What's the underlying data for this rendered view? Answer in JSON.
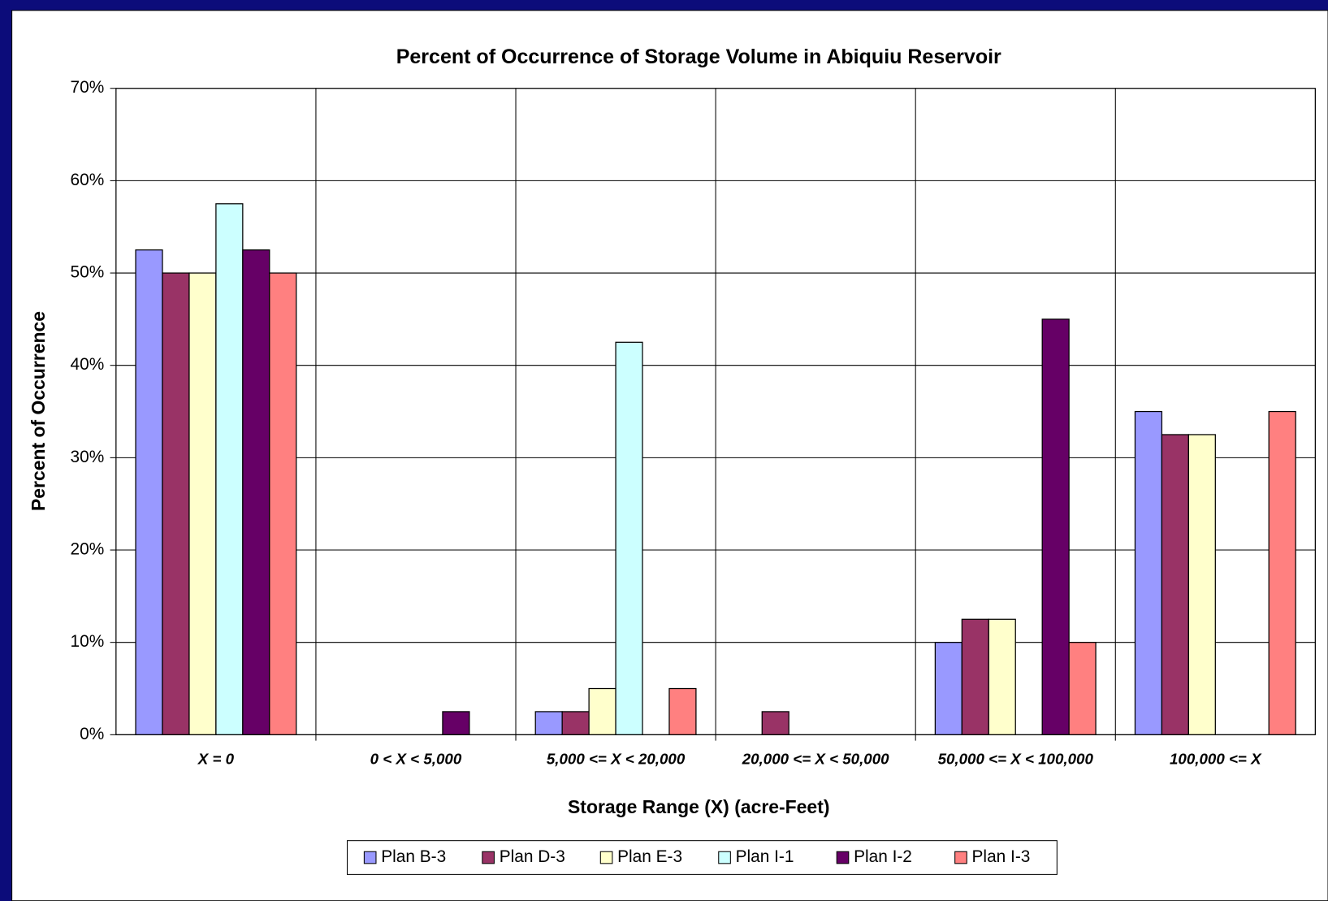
{
  "chart_data": {
    "type": "bar",
    "title": "Percent of Occurrence of Storage Volume in Abiquiu Reservoir",
    "x_label": "Storage Range (X) (acre-Feet)",
    "y_label": "Percent of Occurrence",
    "categories": [
      "X = 0",
      "0 < X < 5,000",
      "5,000 <= X < 20,000",
      "20,000 <= X < 50,000",
      "50,000 <= X < 100,000",
      "100,000 <= X"
    ],
    "series": [
      {
        "name": "Plan B-3",
        "color": "#9999ff",
        "values": [
          52.5,
          0,
          2.5,
          0,
          10,
          35
        ]
      },
      {
        "name": "Plan D-3",
        "color": "#993366",
        "values": [
          50,
          0,
          2.5,
          2.5,
          12.5,
          32.5
        ]
      },
      {
        "name": "Plan E-3",
        "color": "#ffffcc",
        "values": [
          50,
          0,
          5,
          0,
          12.5,
          32.5
        ]
      },
      {
        "name": "Plan I-1",
        "color": "#ccffff",
        "values": [
          57.5,
          0,
          42.5,
          0,
          0,
          0
        ]
      },
      {
        "name": "Plan I-2",
        "color": "#660066",
        "values": [
          52.5,
          2.5,
          0,
          0,
          45,
          0
        ]
      },
      {
        "name": "Plan I-3",
        "color": "#ff8080",
        "values": [
          50,
          0,
          5,
          0,
          10,
          35
        ]
      }
    ],
    "ylim": [
      0,
      70
    ],
    "yticks": [
      {
        "value": 0,
        "label": "0%"
      },
      {
        "value": 10,
        "label": "10%"
      },
      {
        "value": 20,
        "label": "20%"
      },
      {
        "value": 30,
        "label": "30%"
      },
      {
        "value": 40,
        "label": "40%"
      },
      {
        "value": 50,
        "label": "50%"
      },
      {
        "value": 60,
        "label": "60%"
      },
      {
        "value": 70,
        "label": "70%"
      }
    ],
    "grid": true,
    "legend": "bottom"
  }
}
